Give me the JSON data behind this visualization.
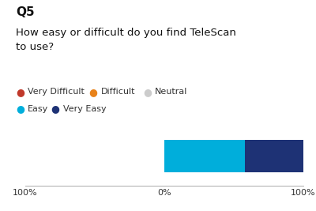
{
  "title": "Q5",
  "subtitle": "How easy or difficult do you find TeleScan\nto use?",
  "background_color": "#ffffff",
  "segments": [
    {
      "label": "Easy",
      "value": 58,
      "color": "#00aedb"
    },
    {
      "label": "Very Easy",
      "value": 42,
      "color": "#1e3275"
    }
  ],
  "legend_items": [
    {
      "label": "Very Difficult",
      "color": "#c0392b"
    },
    {
      "label": "Difficult",
      "color": "#e8821a"
    },
    {
      "label": "Neutral",
      "color": "#cccccc"
    },
    {
      "label": "Easy",
      "color": "#00aedb"
    },
    {
      "label": "Very Easy",
      "color": "#1e3275"
    }
  ],
  "xlim": [
    -100,
    100
  ],
  "xticks": [
    -100,
    0,
    100
  ],
  "xticklabels": [
    "100%",
    "0%",
    "100%"
  ],
  "title_fontsize": 11,
  "subtitle_fontsize": 9.5,
  "legend_fontsize": 8,
  "tick_fontsize": 8
}
